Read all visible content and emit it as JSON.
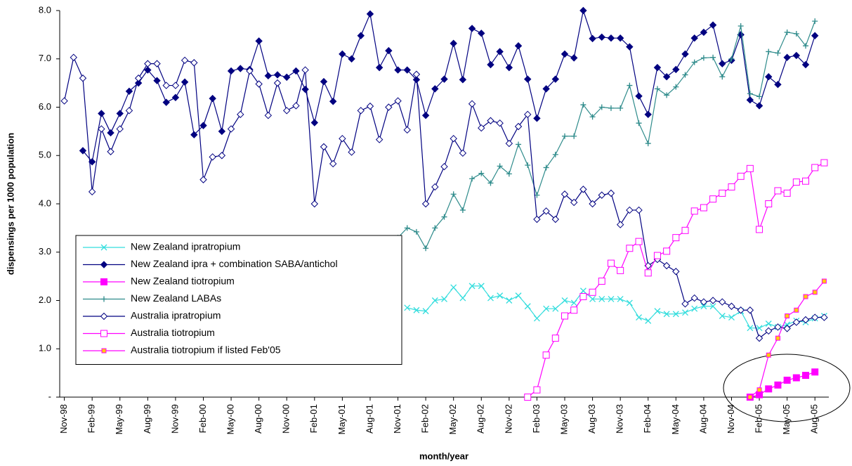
{
  "chart_data": {
    "type": "line",
    "xlabel": "month/year",
    "ylabel": "dispensings per 1000 population",
    "categories": [
      "Nov-98",
      null,
      null,
      "Feb-99",
      null,
      null,
      "May-99",
      null,
      null,
      "Aug-99",
      null,
      null,
      "Nov-99",
      null,
      null,
      "Feb-00",
      null,
      null,
      "May-00",
      null,
      null,
      "Aug-00",
      null,
      null,
      "Nov-00",
      null,
      null,
      "Feb-01",
      null,
      null,
      "May-01",
      null,
      null,
      "Aug-01",
      null,
      null,
      "Nov-01",
      null,
      null,
      "Feb-02",
      null,
      null,
      "May-02",
      null,
      null,
      "Aug-02",
      null,
      null,
      "Nov-02",
      null,
      null,
      "Feb-03",
      null,
      null,
      "May-03",
      null,
      null,
      "Aug-03",
      null,
      null,
      "Nov-03",
      null,
      null,
      "Feb-04",
      null,
      null,
      "May-04",
      null,
      null,
      "Aug-04",
      null,
      null,
      "Nov-04",
      null,
      null,
      "Feb-05",
      null,
      null,
      "May-05",
      null,
      null,
      "Aug-05",
      null
    ],
    "ylim": [
      0,
      8
    ],
    "yticks": [
      {
        "value": 0,
        "label": "-"
      },
      {
        "value": 1,
        "label": "1.0"
      },
      {
        "value": 2,
        "label": "2.0"
      },
      {
        "value": 3,
        "label": "3.0"
      },
      {
        "value": 4,
        "label": "4.0"
      },
      {
        "value": 5,
        "label": "5.0"
      },
      {
        "value": 6,
        "label": "6.0"
      },
      {
        "value": 7,
        "label": "7.0"
      },
      {
        "value": 8,
        "label": "8.0"
      }
    ],
    "grid": false,
    "legend": "left",
    "series": [
      {
        "name": "New Zealand ipratropium",
        "color": "#33dddd",
        "marker": "x",
        "marker_fill": "none",
        "values": [
          null,
          null,
          null,
          null,
          null,
          null,
          null,
          null,
          null,
          null,
          null,
          null,
          null,
          null,
          null,
          null,
          null,
          null,
          null,
          null,
          null,
          null,
          null,
          null,
          null,
          null,
          null,
          null,
          null,
          null,
          null,
          null,
          null,
          null,
          null,
          null,
          null,
          1.85,
          1.8,
          1.78,
          2.0,
          2.03,
          2.27,
          2.05,
          2.3,
          2.3,
          2.05,
          2.1,
          2.0,
          2.1,
          1.88,
          1.63,
          1.83,
          1.83,
          2.0,
          1.95,
          2.2,
          2.03,
          2.03,
          2.03,
          2.03,
          1.95,
          1.65,
          1.58,
          1.78,
          1.72,
          1.72,
          1.75,
          1.83,
          1.88,
          1.88,
          1.68,
          1.65,
          1.78,
          1.43,
          1.43,
          1.52,
          1.45,
          1.5,
          1.58,
          1.55,
          1.63,
          1.68
        ]
      },
      {
        "name": "New Zealand ipra + combination SABA/antichol",
        "color": "#000080",
        "marker": "diamond",
        "marker_fill": "#000080",
        "values": [
          null,
          null,
          5.1,
          4.87,
          5.87,
          5.47,
          5.87,
          6.33,
          6.5,
          6.77,
          6.55,
          6.1,
          6.2,
          6.52,
          5.43,
          5.62,
          6.18,
          5.5,
          6.75,
          6.8,
          6.78,
          7.37,
          6.65,
          6.67,
          6.62,
          6.75,
          6.37,
          5.68,
          6.53,
          6.12,
          7.1,
          7.0,
          7.48,
          7.93,
          6.82,
          7.17,
          6.77,
          6.77,
          6.57,
          5.83,
          6.38,
          6.58,
          7.32,
          6.57,
          7.63,
          7.53,
          6.88,
          7.15,
          6.82,
          7.27,
          6.58,
          5.77,
          6.38,
          6.58,
          7.1,
          7.02,
          8.0,
          7.42,
          7.45,
          7.43,
          7.43,
          7.25,
          6.23,
          5.85,
          6.82,
          6.63,
          6.78,
          7.1,
          7.43,
          7.55,
          7.7,
          6.9,
          6.97,
          7.5,
          6.15,
          6.03,
          6.63,
          6.47,
          7.03,
          7.07,
          6.88,
          7.48,
          null
        ]
      },
      {
        "name": "New Zealand tiotropium",
        "color": "#ff00ff",
        "marker": "square",
        "marker_fill": "#ff00ff",
        "values": [
          null,
          null,
          null,
          null,
          null,
          null,
          null,
          null,
          null,
          null,
          null,
          null,
          null,
          null,
          null,
          null,
          null,
          null,
          null,
          null,
          null,
          null,
          null,
          null,
          null,
          null,
          null,
          null,
          null,
          null,
          null,
          null,
          null,
          null,
          null,
          null,
          null,
          null,
          null,
          null,
          null,
          null,
          null,
          null,
          null,
          null,
          null,
          null,
          null,
          null,
          null,
          null,
          null,
          null,
          null,
          null,
          null,
          null,
          null,
          null,
          null,
          null,
          null,
          null,
          null,
          null,
          null,
          null,
          null,
          null,
          null,
          null,
          null,
          null,
          0,
          0.05,
          0.17,
          0.25,
          0.35,
          0.4,
          0.45,
          0.52,
          null
        ]
      },
      {
        "name": "New Zealand LABAs",
        "color": "#2e8b8b",
        "marker": "plus",
        "marker_fill": "none",
        "values": [
          null,
          null,
          null,
          null,
          null,
          null,
          null,
          null,
          null,
          null,
          null,
          null,
          null,
          null,
          null,
          null,
          null,
          null,
          null,
          null,
          null,
          null,
          null,
          null,
          null,
          null,
          null,
          null,
          null,
          null,
          null,
          null,
          null,
          null,
          null,
          null,
          3.3,
          3.5,
          3.42,
          3.08,
          3.5,
          3.73,
          4.2,
          3.87,
          4.52,
          4.63,
          4.43,
          4.78,
          4.62,
          5.23,
          4.8,
          4.18,
          4.75,
          5.02,
          5.4,
          5.4,
          6.05,
          5.8,
          6.0,
          5.98,
          5.98,
          6.45,
          5.67,
          5.25,
          6.38,
          6.25,
          6.42,
          6.67,
          6.93,
          7.02,
          7.03,
          6.63,
          7.0,
          7.68,
          6.28,
          6.22,
          7.15,
          7.12,
          7.55,
          7.52,
          7.27,
          7.78,
          null
        ]
      },
      {
        "name": "Australia ipratropium",
        "color": "#000080",
        "marker": "diamond",
        "marker_fill": "#ffffff",
        "values": [
          6.13,
          7.03,
          6.6,
          4.25,
          5.55,
          5.08,
          5.55,
          5.93,
          6.6,
          6.9,
          6.9,
          6.45,
          6.45,
          6.97,
          6.92,
          4.5,
          4.97,
          5.0,
          5.55,
          5.85,
          6.75,
          6.48,
          5.83,
          6.5,
          5.93,
          6.03,
          6.77,
          4.0,
          5.18,
          4.83,
          5.35,
          5.07,
          5.93,
          6.02,
          5.33,
          6.0,
          6.13,
          5.53,
          6.68,
          4.0,
          4.35,
          4.77,
          5.35,
          5.05,
          6.07,
          5.57,
          5.72,
          5.67,
          5.25,
          5.6,
          5.85,
          3.68,
          3.85,
          3.68,
          4.2,
          4.03,
          4.3,
          4.0,
          4.18,
          4.22,
          3.57,
          3.87,
          3.87,
          2.72,
          2.85,
          2.72,
          2.6,
          1.93,
          2.05,
          1.97,
          2.0,
          1.97,
          1.88,
          1.8,
          1.8,
          1.22,
          1.37,
          1.45,
          1.42,
          1.55,
          1.6,
          1.65,
          1.65
        ]
      },
      {
        "name": "Australia tiotropium",
        "color": "#ff00ff",
        "marker": "square",
        "marker_fill": "#ffffff",
        "values": [
          null,
          null,
          null,
          null,
          null,
          null,
          null,
          null,
          null,
          null,
          null,
          null,
          null,
          null,
          null,
          null,
          null,
          null,
          null,
          null,
          null,
          null,
          null,
          null,
          null,
          null,
          null,
          null,
          null,
          null,
          null,
          null,
          null,
          null,
          null,
          null,
          null,
          null,
          null,
          null,
          null,
          null,
          null,
          null,
          null,
          null,
          null,
          null,
          null,
          null,
          0,
          0.15,
          0.87,
          1.22,
          1.68,
          1.8,
          2.08,
          2.17,
          2.4,
          2.77,
          2.62,
          3.08,
          3.22,
          2.57,
          2.93,
          3.02,
          3.3,
          3.45,
          3.85,
          3.92,
          4.1,
          4.22,
          4.35,
          4.57,
          4.73,
          3.47,
          4.0,
          4.27,
          4.22,
          4.45,
          4.47,
          4.75,
          4.85
        ]
      },
      {
        "name": "Australia tiotropium if listed Feb'05",
        "color": "#ff00ff",
        "marker": "small-square",
        "marker_fill": "#ffcc00",
        "values": [
          null,
          null,
          null,
          null,
          null,
          null,
          null,
          null,
          null,
          null,
          null,
          null,
          null,
          null,
          null,
          null,
          null,
          null,
          null,
          null,
          null,
          null,
          null,
          null,
          null,
          null,
          null,
          null,
          null,
          null,
          null,
          null,
          null,
          null,
          null,
          null,
          null,
          null,
          null,
          null,
          null,
          null,
          null,
          null,
          null,
          null,
          null,
          null,
          null,
          null,
          null,
          null,
          null,
          null,
          null,
          null,
          null,
          null,
          null,
          null,
          null,
          null,
          null,
          null,
          null,
          null,
          null,
          null,
          null,
          null,
          null,
          null,
          null,
          null,
          0,
          0.15,
          0.87,
          1.22,
          1.68,
          1.8,
          2.08,
          2.17,
          2.4
        ]
      }
    ]
  }
}
